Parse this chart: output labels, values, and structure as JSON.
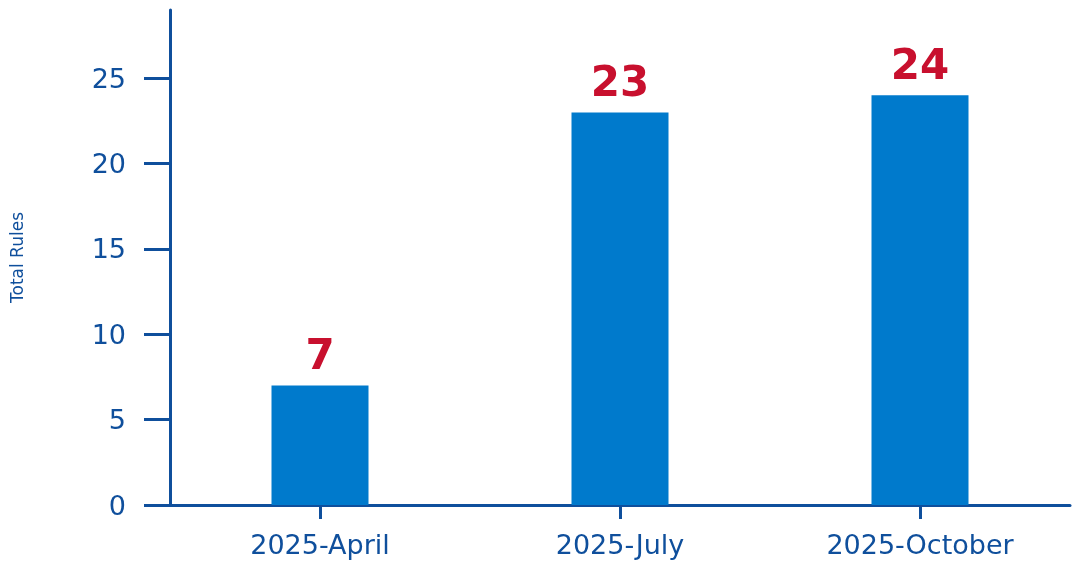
{
  "chart_data": {
    "type": "bar",
    "ylabel": "Total Rules",
    "categories": [
      "2025-April",
      "2025-July",
      "2025-October"
    ],
    "series": [
      {
        "color": "#007acc",
        "values": [
          7,
          23,
          24
        ]
      }
    ],
    "ylim": [
      0,
      29
    ],
    "yticks": [
      0,
      5,
      10,
      15,
      20,
      25
    ],
    "data_labels": true,
    "grid": false
  }
}
